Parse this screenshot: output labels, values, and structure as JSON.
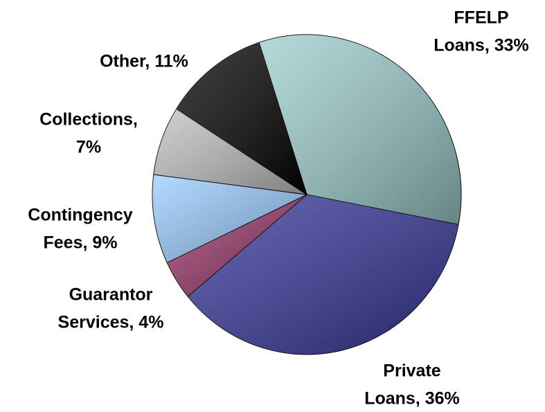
{
  "chart_data": {
    "type": "pie",
    "values": [
      33,
      36,
      4,
      9,
      7,
      11
    ],
    "value_labels": [
      [
        "FFELP",
        "Loans, 33%"
      ],
      [
        "Private",
        "Loans, 36%"
      ],
      [
        "Guarantor",
        "Services, 4%"
      ],
      [
        "Contingency",
        "Fees, 9%"
      ],
      [
        "Collections,",
        "7%"
      ],
      [
        "Other, 11%"
      ]
    ],
    "colors": [
      "#9ccccc",
      "#333399",
      "#993366",
      "#99ccff",
      "#c0c0c0",
      "#000000"
    ]
  }
}
